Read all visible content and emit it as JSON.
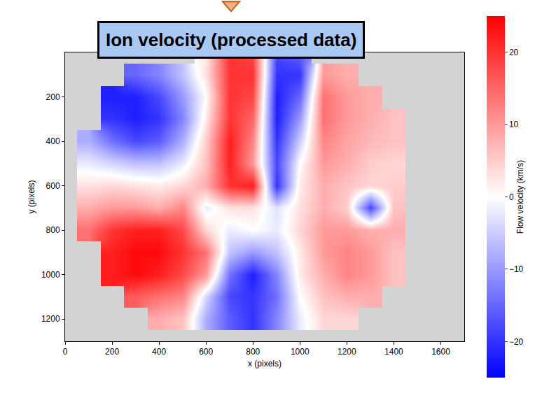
{
  "chart_data": {
    "type": "heatmap",
    "title": "Ion velocity (processed data)",
    "x_label": "x (pixels)",
    "y_label": "y (pixels)",
    "x": [
      0,
      100,
      200,
      300,
      400,
      500,
      600,
      700,
      800,
      900,
      1000,
      1100,
      1200,
      1300,
      1400,
      1500,
      1600,
      1700
    ],
    "y": [
      0,
      100,
      200,
      300,
      400,
      500,
      600,
      700,
      800,
      900,
      1000,
      1100,
      1200,
      1300
    ],
    "z": [
      [
        null,
        null,
        null,
        null,
        null,
        null,
        2,
        20,
        18,
        -18,
        -15,
        null,
        null,
        null,
        null,
        null,
        null,
        null
      ],
      [
        null,
        null,
        null,
        -15,
        -12,
        -6,
        3,
        20,
        20,
        -20,
        -20,
        10,
        8,
        null,
        null,
        null,
        null,
        null
      ],
      [
        null,
        null,
        -22,
        -22,
        -18,
        -10,
        0,
        20,
        18,
        -22,
        -15,
        14,
        10,
        8,
        null,
        null,
        null,
        null
      ],
      [
        null,
        null,
        -20,
        -22,
        -20,
        -12,
        2,
        20,
        15,
        -22,
        -10,
        14,
        10,
        8,
        6,
        null,
        null,
        null
      ],
      [
        null,
        -8,
        -14,
        -18,
        -16,
        -8,
        5,
        22,
        12,
        -20,
        -5,
        12,
        9,
        7,
        6,
        null,
        null,
        null
      ],
      [
        null,
        -2,
        -4,
        -6,
        -6,
        -2,
        6,
        22,
        10,
        -18,
        0,
        10,
        8,
        5,
        4,
        null,
        null,
        null
      ],
      [
        null,
        3,
        4,
        3,
        2,
        4,
        8,
        20,
        22,
        -20,
        2,
        8,
        6,
        4,
        5,
        null,
        null,
        null
      ],
      [
        null,
        8,
        10,
        10,
        8,
        12,
        -2,
        3,
        3,
        -3,
        3,
        8,
        5,
        -18,
        6,
        null,
        null,
        null
      ],
      [
        null,
        14,
        20,
        22,
        22,
        18,
        4,
        -2,
        0,
        -2,
        4,
        10,
        10,
        8,
        8,
        null,
        null,
        null
      ],
      [
        null,
        null,
        22,
        24,
        24,
        20,
        14,
        -6,
        -10,
        -6,
        2,
        10,
        12,
        10,
        6,
        null,
        null,
        null
      ],
      [
        null,
        null,
        22,
        24,
        22,
        18,
        10,
        -14,
        -22,
        -12,
        2,
        8,
        12,
        10,
        6,
        null,
        null,
        null
      ],
      [
        null,
        null,
        null,
        16,
        14,
        12,
        -4,
        -18,
        -20,
        -14,
        0,
        6,
        8,
        8,
        null,
        null,
        null,
        null
      ],
      [
        null,
        null,
        null,
        null,
        8,
        6,
        -8,
        -16,
        -20,
        -12,
        -2,
        4,
        4,
        null,
        null,
        null,
        null,
        null
      ],
      [
        null,
        null,
        null,
        null,
        null,
        null,
        null,
        null,
        null,
        null,
        null,
        null,
        null,
        null,
        null,
        null,
        null,
        null
      ]
    ],
    "xlim": [
      0,
      1700
    ],
    "ylim": [
      1300,
      0
    ],
    "xticks": [
      0,
      200,
      400,
      600,
      800,
      1000,
      1200,
      1400,
      1600
    ],
    "yticks": [
      200,
      400,
      600,
      800,
      1000,
      1200
    ],
    "grid": false,
    "colorbar": {
      "title": "Flow velocity (km/s)",
      "range": [
        -25,
        25
      ],
      "ticks": [
        -20,
        -10,
        0,
        10,
        20
      ],
      "colors": [
        "#0000ff",
        "#ffffff",
        "#ff0000"
      ]
    }
  }
}
